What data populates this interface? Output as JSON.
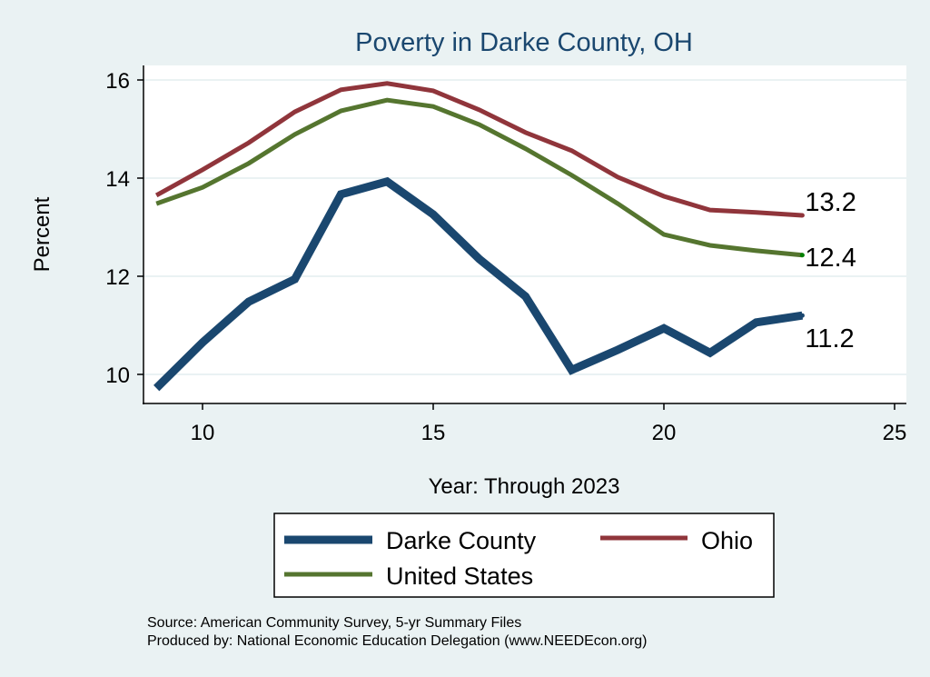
{
  "chart_data": {
    "type": "line",
    "title": "Poverty in Darke County, OH",
    "xlabel": "Year: Through 2023",
    "ylabel": "Percent",
    "xlim": [
      8.7,
      25.3
    ],
    "ylim": [
      9.4,
      16.3
    ],
    "xticks": [
      10,
      15,
      20,
      25
    ],
    "yticks": [
      10,
      12,
      14,
      16
    ],
    "grid": true,
    "legend_position": "bottom",
    "x": [
      9,
      10,
      11,
      12,
      13,
      14,
      15,
      16,
      17,
      18,
      19,
      20,
      21,
      22,
      23
    ],
    "series": [
      {
        "name": "Darke County",
        "color": "#1a476f",
        "width": 9,
        "values": [
          9.72,
          10.65,
          11.48,
          11.94,
          13.67,
          13.93,
          13.26,
          12.35,
          11.59,
          10.09,
          10.5,
          10.94,
          10.44,
          11.06,
          11.2
        ],
        "end_label": "11.2"
      },
      {
        "name": "Ohio",
        "color": "#90353b",
        "width": 5,
        "values": [
          13.65,
          14.17,
          14.72,
          15.35,
          15.8,
          15.93,
          15.78,
          15.39,
          14.93,
          14.56,
          14.02,
          13.63,
          13.35,
          13.3,
          13.24
        ],
        "end_label": "13.2"
      },
      {
        "name": "United States",
        "color": "#55752f",
        "width": 5,
        "values": [
          13.48,
          13.81,
          14.3,
          14.89,
          15.37,
          15.59,
          15.46,
          15.09,
          14.6,
          14.06,
          13.48,
          12.85,
          12.63,
          12.52,
          12.43
        ],
        "end_label": "12.4"
      }
    ],
    "notes": [
      "Source: American Community Survey, 5-yr Summary Files",
      "Produced by: National Economic Education Delegation (www.NEEDEcon.org)"
    ]
  }
}
